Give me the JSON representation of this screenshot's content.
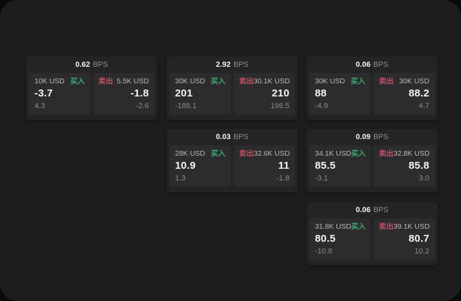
{
  "app": {
    "background": "#0a0a0a",
    "panel_background": "#1d1d1f",
    "card_background": "#242427",
    "tile_background": "#2c2c2f"
  },
  "labels": {
    "bps_unit": "BPS",
    "buy": "买入",
    "sell": "卖出"
  },
  "colors": {
    "buy_accent": "#43a86e",
    "sell_accent": "#c25062"
  },
  "cards": [
    {
      "bps": "0.62",
      "buy": {
        "amount": "10K USD",
        "price": "-3.7",
        "delta": "4.3"
      },
      "sell": {
        "amount": "5.5K USD",
        "price": "-1.8",
        "delta": "-2.6"
      }
    },
    {
      "bps": "2.92",
      "buy": {
        "amount": "30K USD",
        "price": "201",
        "delta": "-188.1"
      },
      "sell": {
        "amount": "30.1K USD",
        "price": "210",
        "delta": "196.5"
      }
    },
    {
      "bps": "0.06",
      "buy": {
        "amount": "30K USD",
        "price": "88",
        "delta": "-4.9"
      },
      "sell": {
        "amount": "30K USD",
        "price": "88.2",
        "delta": "4.7"
      }
    },
    {
      "bps": "0.03",
      "buy": {
        "amount": "28K USD",
        "price": "10.9",
        "delta": "1.3"
      },
      "sell": {
        "amount": "32.6K USD",
        "price": "11",
        "delta": "-1.8"
      }
    },
    {
      "bps": "0.09",
      "buy": {
        "amount": "34.1K USD",
        "price": "85.5",
        "delta": "-3.1"
      },
      "sell": {
        "amount": "32.8K USD",
        "price": "85.8",
        "delta": "3.0"
      }
    },
    {
      "bps": "0.06",
      "buy": {
        "amount": "31.8K USD",
        "price": "80.5",
        "delta": "-10.8"
      },
      "sell": {
        "amount": "39.1K USD",
        "price": "80.7",
        "delta": "10.2"
      }
    }
  ]
}
